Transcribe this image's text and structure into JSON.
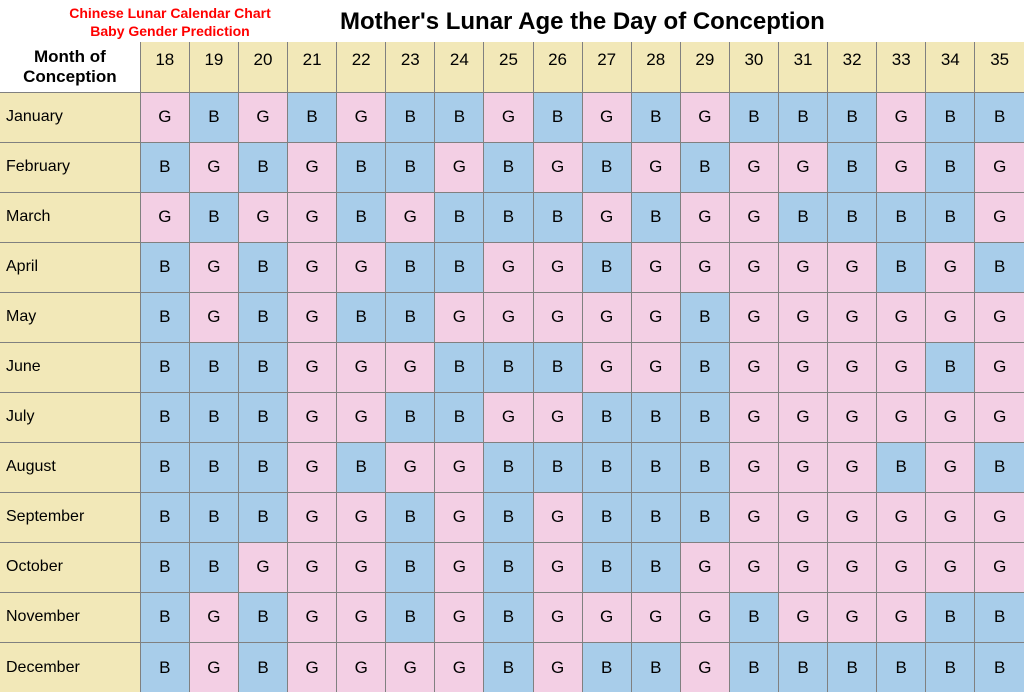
{
  "subtitle_line1": "Chinese Lunar Calendar Chart",
  "subtitle_line2": "Baby Gender Prediction",
  "title": "Mother's Lunar Age the Day of Conception",
  "corner_line1": "Month of",
  "corner_line2": "Conception",
  "colors": {
    "header_bg": "#f2e8b8",
    "month_bg": "#f2e8b8",
    "boy_bg": "#a8cdea",
    "girl_bg": "#f3cfe4",
    "border": "#808080",
    "subtitle": "#ff0000",
    "text": "#000000"
  },
  "ages": [
    18,
    19,
    20,
    21,
    22,
    23,
    24,
    25,
    26,
    27,
    28,
    29,
    30,
    31,
    32,
    33,
    34,
    35
  ],
  "months": [
    "January",
    "February",
    "March",
    "April",
    "May",
    "June",
    "July",
    "August",
    "September",
    "October",
    "November",
    "December"
  ],
  "grid": [
    [
      "G",
      "B",
      "G",
      "B",
      "G",
      "B",
      "B",
      "G",
      "B",
      "G",
      "B",
      "G",
      "B",
      "B",
      "B",
      "G",
      "B",
      "B"
    ],
    [
      "B",
      "G",
      "B",
      "G",
      "B",
      "B",
      "G",
      "B",
      "G",
      "B",
      "G",
      "B",
      "G",
      "G",
      "B",
      "G",
      "B",
      "G"
    ],
    [
      "G",
      "B",
      "G",
      "G",
      "B",
      "G",
      "B",
      "B",
      "B",
      "G",
      "B",
      "G",
      "G",
      "B",
      "B",
      "B",
      "B",
      "G"
    ],
    [
      "B",
      "G",
      "B",
      "G",
      "G",
      "B",
      "B",
      "G",
      "G",
      "B",
      "G",
      "G",
      "G",
      "G",
      "G",
      "B",
      "G",
      "B"
    ],
    [
      "B",
      "G",
      "B",
      "G",
      "B",
      "B",
      "G",
      "G",
      "G",
      "G",
      "G",
      "B",
      "G",
      "G",
      "G",
      "G",
      "G",
      "G"
    ],
    [
      "B",
      "B",
      "B",
      "G",
      "G",
      "G",
      "B",
      "B",
      "B",
      "G",
      "G",
      "B",
      "G",
      "G",
      "G",
      "G",
      "B",
      "G"
    ],
    [
      "B",
      "B",
      "B",
      "G",
      "G",
      "B",
      "B",
      "G",
      "G",
      "B",
      "B",
      "B",
      "G",
      "G",
      "G",
      "G",
      "G",
      "G"
    ],
    [
      "B",
      "B",
      "B",
      "G",
      "B",
      "G",
      "G",
      "B",
      "B",
      "B",
      "B",
      "B",
      "G",
      "G",
      "G",
      "B",
      "G",
      "B"
    ],
    [
      "B",
      "B",
      "B",
      "G",
      "G",
      "B",
      "G",
      "B",
      "G",
      "B",
      "B",
      "B",
      "G",
      "G",
      "G",
      "G",
      "G",
      "G"
    ],
    [
      "B",
      "B",
      "G",
      "G",
      "G",
      "B",
      "G",
      "B",
      "G",
      "B",
      "B",
      "G",
      "G",
      "G",
      "G",
      "G",
      "G",
      "G"
    ],
    [
      "B",
      "G",
      "B",
      "G",
      "G",
      "B",
      "G",
      "B",
      "G",
      "G",
      "G",
      "G",
      "B",
      "G",
      "G",
      "G",
      "B",
      "B"
    ],
    [
      "B",
      "G",
      "B",
      "G",
      "G",
      "G",
      "G",
      "B",
      "G",
      "B",
      "B",
      "G",
      "B",
      "B",
      "B",
      "B",
      "B",
      "B"
    ]
  ],
  "label_boy": "B",
  "label_girl": "G"
}
